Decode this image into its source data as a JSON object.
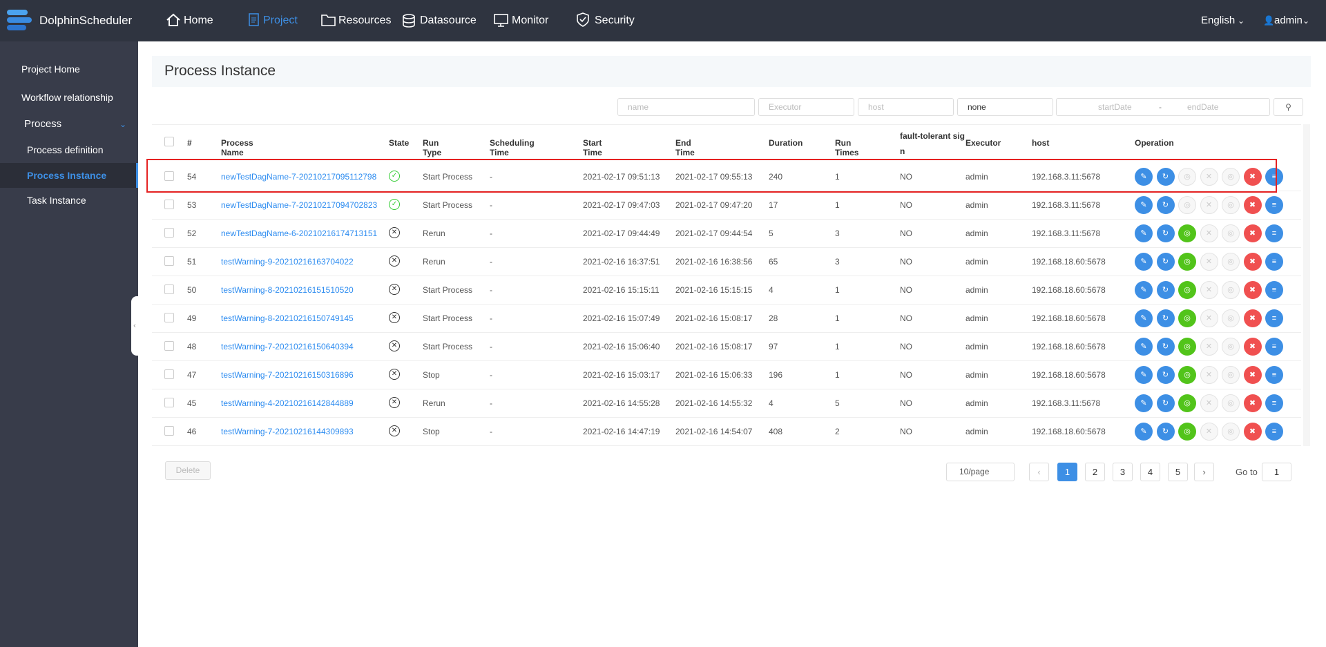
{
  "nav": {
    "brand": "DolphinScheduler",
    "items": [
      "Home",
      "Project",
      "Resources",
      "Datasource",
      "Monitor",
      "Security"
    ],
    "language": "English",
    "user": "admin"
  },
  "sidebar": {
    "items": [
      "Project Home",
      "Workflow relationship",
      "Process"
    ],
    "sub_items": [
      "Process definition",
      "Process Instance",
      "Task Instance"
    ]
  },
  "page": {
    "title": "Process Instance"
  },
  "filters": {
    "name": "name",
    "executor": "Executor",
    "host": "host",
    "state": "none",
    "start_date": "startDate",
    "separator": "-",
    "end_date": "endDate"
  },
  "table": {
    "headers": [
      "#",
      "Process Name",
      "State",
      "Run Type",
      "Scheduling Time",
      "Start Time",
      "End Time",
      "Duration",
      "Run Times",
      "fault-tolerant sign",
      "Executor",
      "host",
      "Operation"
    ],
    "rows": [
      [
        "54",
        "newTestDagName-7-20210217095112798",
        "Start Process",
        "-",
        "2021-02-17 09:51:13",
        "2021-02-17 09:55:13",
        "240",
        "1",
        "NO",
        "admin",
        "192.168.3.11:5678"
      ],
      [
        "53",
        "newTestDagName-7-20210217094702823",
        "Start Process",
        "-",
        "2021-02-17 09:47:03",
        "2021-02-17 09:47:20",
        "17",
        "1",
        "NO",
        "admin",
        "192.168.3.11:5678"
      ],
      [
        "52",
        "newTestDagName-6-20210216174713151",
        "Rerun",
        "-",
        "2021-02-17 09:44:49",
        "2021-02-17 09:44:54",
        "5",
        "3",
        "NO",
        "admin",
        "192.168.3.11:5678"
      ],
      [
        "51",
        "testWarning-9-20210216163704022",
        "Rerun",
        "-",
        "2021-02-16 16:37:51",
        "2021-02-16 16:38:56",
        "65",
        "3",
        "NO",
        "admin",
        "192.168.18.60:5678"
      ],
      [
        "50",
        "testWarning-8-20210216151510520",
        "Start Process",
        "-",
        "2021-02-16 15:15:11",
        "2021-02-16 15:15:15",
        "4",
        "1",
        "NO",
        "admin",
        "192.168.18.60:5678"
      ],
      [
        "49",
        "testWarning-8-20210216150749145",
        "Start Process",
        "-",
        "2021-02-16 15:07:49",
        "2021-02-16 15:08:17",
        "28",
        "1",
        "NO",
        "admin",
        "192.168.18.60:5678"
      ],
      [
        "48",
        "testWarning-7-20210216150640394",
        "Start Process",
        "-",
        "2021-02-16 15:06:40",
        "2021-02-16 15:08:17",
        "97",
        "1",
        "NO",
        "admin",
        "192.168.18.60:5678"
      ],
      [
        "47",
        "testWarning-7-20210216150316896",
        "Stop",
        "-",
        "2021-02-16 15:03:17",
        "2021-02-16 15:06:33",
        "196",
        "1",
        "NO",
        "admin",
        "192.168.18.60:5678"
      ],
      [
        "45",
        "testWarning-4-20210216142844889",
        "Rerun",
        "-",
        "2021-02-16 14:55:28",
        "2021-02-16 14:55:32",
        "4",
        "5",
        "NO",
        "admin",
        "192.168.3.11:5678"
      ],
      [
        "46",
        "testWarning-7-20210216144309893",
        "Stop",
        "-",
        "2021-02-16 14:47:19",
        "2021-02-16 14:54:07",
        "408",
        "2",
        "NO",
        "admin",
        "192.168.18.60:5678"
      ]
    ]
  },
  "footer": {
    "delete": "Delete",
    "page_size": "10/page",
    "pages": [
      "1",
      "2",
      "3",
      "4",
      "5"
    ],
    "goto": "Go to",
    "goto_value": "1"
  }
}
